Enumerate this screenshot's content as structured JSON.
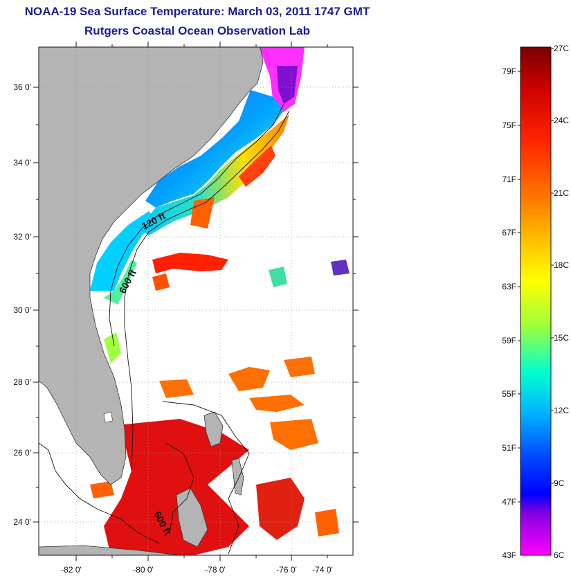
{
  "header": {
    "title": "NOAA-19 Sea Surface Temperature:  March 03, 2011 1747 GMT",
    "subtitle": "Rutgers Coastal Ocean Observation Lab"
  },
  "map": {
    "latitude_labels": [
      "36 0'",
      "34 0'",
      "32 0'",
      "30 0'",
      "28 0'",
      "26 0'",
      "24 0'"
    ],
    "longitude_labels": [
      "-82 0'",
      "-80 0'",
      "-78 0'",
      "-76 0'",
      "-74 0'"
    ],
    "contour_labels": [
      "120 ft",
      "600 ft",
      "600 ft"
    ],
    "land_color": "#b4b4b4",
    "no_data_color": "#ffffff"
  },
  "colorbar": {
    "fahrenheit_labels": [
      "79F",
      "75F",
      "71F",
      "67F",
      "63F",
      "59F",
      "55F",
      "51F",
      "47F",
      "43F"
    ],
    "celsius_labels": [
      "27C",
      "24C",
      "21C",
      "18C",
      "15C",
      "12C",
      "9C",
      "6C"
    ],
    "colors": [
      "#7a0000",
      "#cc0000",
      "#ff2200",
      "#ff7a00",
      "#ffd000",
      "#ffff00",
      "#9cff3c",
      "#00ffd0",
      "#00b4ff",
      "#0050ff",
      "#0000ff",
      "#8800e0",
      "#ff00ff"
    ]
  }
}
